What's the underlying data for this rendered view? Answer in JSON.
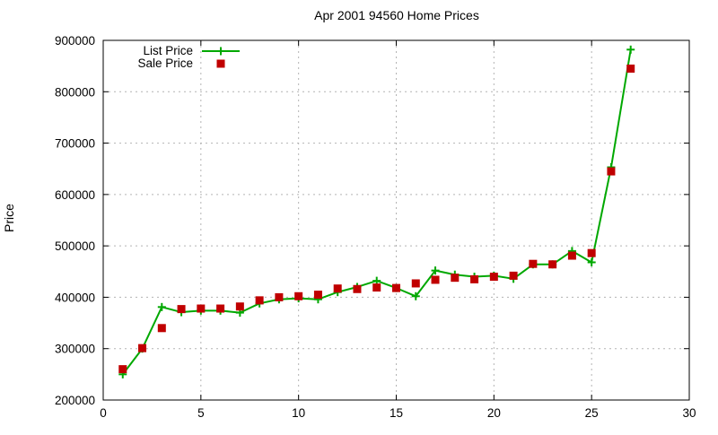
{
  "chart": {
    "title": "Apr 2001 94560 Home Prices",
    "ylabel": "Price"
  },
  "chart_data": {
    "type": "line",
    "title": "Apr 2001 94560 Home Prices",
    "xlabel": "",
    "ylabel": "Price",
    "xlim": [
      0,
      30
    ],
    "ylim": [
      200000,
      900000
    ],
    "x_ticks": [
      0,
      5,
      10,
      15,
      20,
      25,
      30
    ],
    "y_ticks": [
      200000,
      300000,
      400000,
      500000,
      600000,
      700000,
      800000,
      900000
    ],
    "grid": true,
    "grid_style": "dashed-gray",
    "legend_position": "top-left-inside",
    "x": [
      1,
      2,
      3,
      4,
      5,
      6,
      7,
      8,
      9,
      10,
      11,
      12,
      13,
      14,
      15,
      16,
      17,
      18,
      19,
      20,
      21,
      22,
      23,
      24,
      25,
      26,
      27
    ],
    "series": [
      {
        "name": "List Price",
        "marker": "plus",
        "draw_line": true,
        "color": "#00a800",
        "values": [
          250000,
          300000,
          381000,
          371000,
          374000,
          374000,
          370000,
          388000,
          396000,
          398000,
          396000,
          410000,
          420000,
          432000,
          418000,
          402000,
          452000,
          444000,
          440000,
          442000,
          436000,
          464000,
          464000,
          490000,
          468000,
          653000,
          882000
        ]
      },
      {
        "name": "Sale Price",
        "marker": "square",
        "draw_line": false,
        "color": "#c00000",
        "values": [
          260000,
          301000,
          340000,
          377000,
          378000,
          378000,
          382000,
          394000,
          400000,
          402000,
          405000,
          417000,
          416000,
          419000,
          418000,
          427000,
          434000,
          438000,
          435000,
          440000,
          442000,
          465000,
          464000,
          481000,
          486000,
          645000,
          845000
        ]
      }
    ]
  },
  "colors": {
    "list_price": "#00a800",
    "sale_price": "#c00000",
    "grid": "#b3b3b3",
    "axis": "#000000",
    "background": "#ffffff"
  }
}
